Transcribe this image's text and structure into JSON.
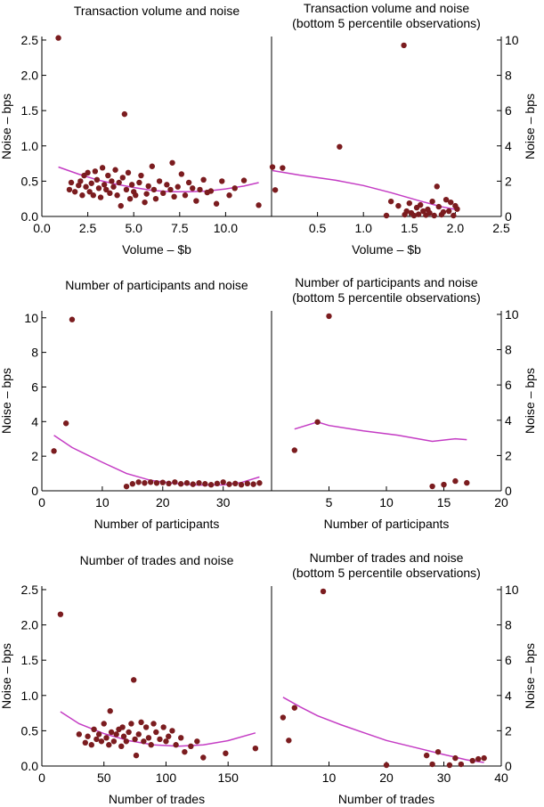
{
  "colors": {
    "point": "#7b1c1f",
    "line": "#c43cc4",
    "axis": "#000000"
  },
  "chart_data": [
    {
      "type": "scatter",
      "title": "Transaction volume and noise",
      "xlabel": "Volume – $b",
      "ylabel": "Noise – bps",
      "xlim": [
        0,
        12.5
      ],
      "ylim": [
        0,
        2.55
      ],
      "xticks": [
        0,
        2.5,
        5,
        7.5,
        10
      ],
      "xtick_labels": [
        "0.0",
        "2.5",
        "5.0",
        "7.5",
        "10.0"
      ],
      "yticks": [
        0,
        0.5,
        1,
        1.5,
        2,
        2.5
      ],
      "ytick_labels": [
        "0.0",
        "0.5",
        "1.0",
        "1.5",
        "2.0",
        "2.5"
      ],
      "ylabel_side": "left",
      "points": [
        [
          0.9,
          2.53
        ],
        [
          4.5,
          1.45
        ],
        [
          1.5,
          0.38
        ],
        [
          1.6,
          0.48
        ],
        [
          1.8,
          0.35
        ],
        [
          2.0,
          0.44
        ],
        [
          2.1,
          0.5
        ],
        [
          2.2,
          0.3
        ],
        [
          2.3,
          0.58
        ],
        [
          2.4,
          0.42
        ],
        [
          2.5,
          0.62
        ],
        [
          2.6,
          0.35
        ],
        [
          2.7,
          0.47
        ],
        [
          2.8,
          0.3
        ],
        [
          2.9,
          0.64
        ],
        [
          3.0,
          0.52
        ],
        [
          3.1,
          0.4
        ],
        [
          3.2,
          0.27
        ],
        [
          3.3,
          0.69
        ],
        [
          3.4,
          0.45
        ],
        [
          3.5,
          0.38
        ],
        [
          3.6,
          0.58
        ],
        [
          3.7,
          0.33
        ],
        [
          3.8,
          0.5
        ],
        [
          3.9,
          0.42
        ],
        [
          4.0,
          0.66
        ],
        [
          4.1,
          0.3
        ],
        [
          4.2,
          0.48
        ],
        [
          4.3,
          0.15
        ],
        [
          4.4,
          0.55
        ],
        [
          4.6,
          0.38
        ],
        [
          4.7,
          0.62
        ],
        [
          4.8,
          0.25
        ],
        [
          4.9,
          0.45
        ],
        [
          5.0,
          0.35
        ],
        [
          5.1,
          0.3
        ],
        [
          5.3,
          0.48
        ],
        [
          5.4,
          0.58
        ],
        [
          5.6,
          0.2
        ],
        [
          5.7,
          0.32
        ],
        [
          5.8,
          0.43
        ],
        [
          6.0,
          0.71
        ],
        [
          6.1,
          0.38
        ],
        [
          6.2,
          0.25
        ],
        [
          6.4,
          0.5
        ],
        [
          6.6,
          0.33
        ],
        [
          6.8,
          0.45
        ],
        [
          7.0,
          0.38
        ],
        [
          7.1,
          0.76
        ],
        [
          7.2,
          0.28
        ],
        [
          7.4,
          0.42
        ],
        [
          7.6,
          0.6
        ],
        [
          7.8,
          0.3
        ],
        [
          8.0,
          0.48
        ],
        [
          8.2,
          0.4
        ],
        [
          8.4,
          0.22
        ],
        [
          8.6,
          0.38
        ],
        [
          8.8,
          0.52
        ],
        [
          9.0,
          0.34
        ],
        [
          9.2,
          0.36
        ],
        [
          9.5,
          0.18
        ],
        [
          9.8,
          0.5
        ],
        [
          10.2,
          0.3
        ],
        [
          10.5,
          0.4
        ],
        [
          11.0,
          0.51
        ],
        [
          11.8,
          0.16
        ]
      ],
      "fit": [
        [
          0.9,
          0.7
        ],
        [
          2,
          0.6
        ],
        [
          3,
          0.52
        ],
        [
          4,
          0.46
        ],
        [
          5,
          0.41
        ],
        [
          6,
          0.37
        ],
        [
          7,
          0.35
        ],
        [
          8,
          0.35
        ],
        [
          9,
          0.36
        ],
        [
          10,
          0.39
        ],
        [
          11,
          0.43
        ],
        [
          11.8,
          0.48
        ]
      ]
    },
    {
      "type": "scatter",
      "title": [
        "Transaction volume and noise",
        "(bottom 5 percentile observations)"
      ],
      "xlabel": "Volume – $b",
      "ylabel": "Noise – bps",
      "xlim": [
        0,
        2.5
      ],
      "ylim": [
        0,
        10.2
      ],
      "xticks": [
        0.5,
        1,
        1.5,
        2,
        2.5
      ],
      "xtick_labels": [
        "0.5",
        "1.0",
        "1.5",
        "2.0",
        "2.5"
      ],
      "yticks": [
        0,
        2,
        4,
        6,
        8,
        10
      ],
      "ytick_labels": [
        "0",
        "2",
        "4",
        "6",
        "8",
        "10"
      ],
      "ylabel_side": "right",
      "points": [
        [
          0.01,
          2.8
        ],
        [
          0.04,
          1.5
        ],
        [
          0.12,
          2.75
        ],
        [
          0.74,
          3.95
        ],
        [
          1.25,
          0.05
        ],
        [
          1.3,
          0.85
        ],
        [
          1.38,
          0.6
        ],
        [
          1.44,
          9.7
        ],
        [
          1.45,
          0.1
        ],
        [
          1.47,
          0.3
        ],
        [
          1.5,
          0.75
        ],
        [
          1.52,
          0.2
        ],
        [
          1.55,
          0.05
        ],
        [
          1.58,
          0.5
        ],
        [
          1.6,
          0.12
        ],
        [
          1.62,
          0.65
        ],
        [
          1.65,
          0.3
        ],
        [
          1.68,
          0.08
        ],
        [
          1.7,
          0.4
        ],
        [
          1.72,
          0.2
        ],
        [
          1.75,
          0.85
        ],
        [
          1.77,
          0.05
        ],
        [
          1.8,
          1.7
        ],
        [
          1.82,
          0.55
        ],
        [
          1.85,
          0.1
        ],
        [
          1.87,
          0.25
        ],
        [
          1.9,
          0.95
        ],
        [
          1.93,
          0.3
        ],
        [
          1.95,
          0.8
        ],
        [
          1.98,
          0.05
        ],
        [
          2.0,
          0.6
        ],
        [
          2.02,
          0.42
        ]
      ],
      "fit": [
        [
          0.01,
          2.6
        ],
        [
          0.3,
          2.35
        ],
        [
          0.7,
          2.05
        ],
        [
          1.0,
          1.75
        ],
        [
          1.3,
          1.35
        ],
        [
          1.6,
          0.9
        ],
        [
          1.85,
          0.55
        ],
        [
          2.02,
          0.38
        ]
      ]
    },
    {
      "type": "scatter",
      "title": "Number of participants and noise",
      "xlabel": "Number of participants",
      "ylabel": "Noise – bps",
      "xlim": [
        0,
        38
      ],
      "ylim": [
        0,
        10.4
      ],
      "xticks": [
        0,
        10,
        20,
        30
      ],
      "xtick_labels": [
        "0",
        "10",
        "20",
        "30"
      ],
      "yticks": [
        0,
        2,
        4,
        6,
        8,
        10
      ],
      "ytick_labels": [
        "0",
        "2",
        "4",
        "6",
        "8",
        "10"
      ],
      "ylabel_side": "left",
      "points": [
        [
          2,
          2.3
        ],
        [
          4,
          3.9
        ],
        [
          5,
          9.9
        ],
        [
          14,
          0.25
        ],
        [
          15,
          0.4
        ],
        [
          16,
          0.5
        ],
        [
          17,
          0.45
        ],
        [
          18,
          0.5
        ],
        [
          19,
          0.45
        ],
        [
          20,
          0.48
        ],
        [
          21,
          0.42
        ],
        [
          22,
          0.5
        ],
        [
          23,
          0.4
        ],
        [
          24,
          0.45
        ],
        [
          25,
          0.38
        ],
        [
          26,
          0.45
        ],
        [
          27,
          0.4
        ],
        [
          28,
          0.35
        ],
        [
          29,
          0.42
        ],
        [
          30,
          0.5
        ],
        [
          31,
          0.38
        ],
        [
          32,
          0.42
        ],
        [
          33,
          0.35
        ],
        [
          34,
          0.42
        ],
        [
          35,
          0.38
        ],
        [
          36,
          0.45
        ]
      ],
      "fit": [
        [
          2,
          3.2
        ],
        [
          5,
          2.5
        ],
        [
          10,
          1.65
        ],
        [
          14,
          1.0
        ],
        [
          18,
          0.6
        ],
        [
          22,
          0.42
        ],
        [
          26,
          0.33
        ],
        [
          30,
          0.34
        ],
        [
          33,
          0.48
        ],
        [
          36,
          0.8
        ]
      ]
    },
    {
      "type": "scatter",
      "title": [
        "Number of participants and noise",
        "(bottom 5 percentile observations)"
      ],
      "xlabel": "Number of participants",
      "ylabel": "Noise – bps",
      "xlim": [
        0,
        20
      ],
      "ylim": [
        0,
        10.2
      ],
      "xticks": [
        5,
        10,
        15,
        20
      ],
      "xtick_labels": [
        "5",
        "10",
        "15",
        "20"
      ],
      "yticks": [
        0,
        2,
        4,
        6,
        8,
        10
      ],
      "ytick_labels": [
        "0",
        "2",
        "4",
        "6",
        "8",
        "10"
      ],
      "ylabel_side": "right",
      "points": [
        [
          2,
          2.3
        ],
        [
          4,
          3.9
        ],
        [
          5,
          9.9
        ],
        [
          14,
          0.25
        ],
        [
          15,
          0.35
        ],
        [
          16,
          0.55
        ],
        [
          17,
          0.45
        ]
      ],
      "fit": [
        [
          2,
          3.5
        ],
        [
          4,
          3.9
        ],
        [
          5,
          3.7
        ],
        [
          8,
          3.4
        ],
        [
          11,
          3.15
        ],
        [
          14,
          2.8
        ],
        [
          16,
          2.95
        ],
        [
          17,
          2.9
        ]
      ]
    },
    {
      "type": "scatter",
      "title": "Number of trades and noise",
      "xlabel": "Number of trades",
      "ylabel": "Noise – bps",
      "xlim": [
        0,
        185
      ],
      "ylim": [
        0,
        2.55
      ],
      "xticks": [
        0,
        50,
        100,
        150
      ],
      "xtick_labels": [
        "0",
        "50",
        "100",
        "150"
      ],
      "yticks": [
        0,
        0.5,
        1,
        1.5,
        2,
        2.5
      ],
      "ytick_labels": [
        "0.0",
        "0.5",
        "1.0",
        "1.5",
        "2.0",
        "2.5"
      ],
      "ylabel_side": "left",
      "points": [
        [
          15,
          2.15
        ],
        [
          30,
          0.45
        ],
        [
          35,
          0.33
        ],
        [
          37,
          0.42
        ],
        [
          40,
          0.3
        ],
        [
          42,
          0.52
        ],
        [
          44,
          0.38
        ],
        [
          46,
          0.45
        ],
        [
          48,
          0.35
        ],
        [
          50,
          0.6
        ],
        [
          52,
          0.4
        ],
        [
          54,
          0.3
        ],
        [
          55,
          0.78
        ],
        [
          56,
          0.48
        ],
        [
          58,
          0.35
        ],
        [
          60,
          0.45
        ],
        [
          62,
          0.52
        ],
        [
          64,
          0.28
        ],
        [
          65,
          0.55
        ],
        [
          66,
          0.42
        ],
        [
          68,
          0.35
        ],
        [
          70,
          0.48
        ],
        [
          72,
          0.6
        ],
        [
          74,
          1.22
        ],
        [
          75,
          0.38
        ],
        [
          76,
          0.15
        ],
        [
          78,
          0.45
        ],
        [
          80,
          0.62
        ],
        [
          82,
          0.35
        ],
        [
          84,
          0.55
        ],
        [
          86,
          0.4
        ],
        [
          88,
          0.3
        ],
        [
          90,
          0.6
        ],
        [
          92,
          0.48
        ],
        [
          95,
          0.38
        ],
        [
          98,
          0.55
        ],
        [
          100,
          0.35
        ],
        [
          102,
          0.42
        ],
        [
          105,
          0.5
        ],
        [
          108,
          0.3
        ],
        [
          112,
          0.4
        ],
        [
          115,
          0.2
        ],
        [
          120,
          0.28
        ],
        [
          125,
          0.35
        ],
        [
          130,
          0.12
        ],
        [
          148,
          0.18
        ],
        [
          172,
          0.25
        ]
      ],
      "fit": [
        [
          15,
          0.77
        ],
        [
          30,
          0.6
        ],
        [
          50,
          0.46
        ],
        [
          70,
          0.36
        ],
        [
          90,
          0.3
        ],
        [
          110,
          0.28
        ],
        [
          130,
          0.3
        ],
        [
          150,
          0.36
        ],
        [
          172,
          0.47
        ]
      ]
    },
    {
      "type": "scatter",
      "title": [
        "Number of trades and noise",
        "(bottom 5 percentile observations)"
      ],
      "xlabel": "Number of trades",
      "ylabel": "Noise – bps",
      "xlim": [
        0,
        40
      ],
      "ylim": [
        0,
        10.2
      ],
      "xticks": [
        10,
        20,
        30,
        40
      ],
      "xtick_labels": [
        "10",
        "20",
        "30",
        "40"
      ],
      "yticks": [
        0,
        2,
        4,
        6,
        8,
        10
      ],
      "ytick_labels": [
        "0",
        "2",
        "4",
        "6",
        "8",
        "10"
      ],
      "ylabel_side": "right",
      "points": [
        [
          2,
          2.75
        ],
        [
          3,
          1.45
        ],
        [
          4,
          3.3
        ],
        [
          9,
          9.9
        ],
        [
          20,
          0.05
        ],
        [
          27,
          0.6
        ],
        [
          28,
          0.1
        ],
        [
          29,
          0.8
        ],
        [
          31,
          0.05
        ],
        [
          32,
          0.45
        ],
        [
          33,
          0.1
        ],
        [
          35,
          0.3
        ],
        [
          36,
          0.4
        ],
        [
          37,
          0.45
        ]
      ],
      "fit": [
        [
          2,
          3.9
        ],
        [
          5,
          3.35
        ],
        [
          8,
          2.85
        ],
        [
          12,
          2.35
        ],
        [
          16,
          1.9
        ],
        [
          20,
          1.45
        ],
        [
          25,
          1.05
        ],
        [
          30,
          0.65
        ],
        [
          34,
          0.35
        ],
        [
          37,
          0.2
        ]
      ]
    }
  ]
}
